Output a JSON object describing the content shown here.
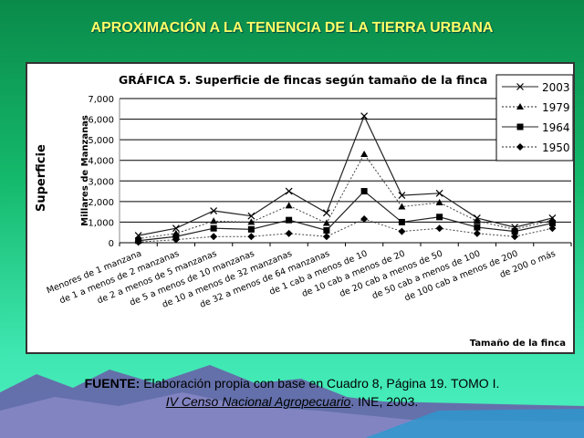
{
  "slide_title": "APROXIMACIÓN A LA TENENCIA DE LA TIERRA URBANA",
  "outer_ylabel": "Superficie",
  "source": {
    "label": "FUENTE:",
    "line1": "Elaboración propia con base en Cuadro 8, Página 19. TOMO I.",
    "line2_italic": "IV Censo Nacional Agropecuario",
    "line2_rest": ".  INE, 2003."
  },
  "chart_data": {
    "type": "line",
    "title": "GRÁFICA 5. Superficie de fincas según tamaño de la finca",
    "xlabel": "Tamaño de la finca",
    "ylabel": "Millares de Manzanas",
    "ylim": [
      0,
      7000
    ],
    "yticks": [
      "0",
      "1,000",
      "2,000",
      "3,000",
      "4,000",
      "5,000",
      "6,000",
      "7,000"
    ],
    "grid": true,
    "legend_position": "top-right",
    "categories": [
      "Menores de 1 manzana",
      "de 1 a menos de 2 manzanas",
      "de 2  a menos de 5 manzanas",
      "de 5 a menos de 10 manzanas",
      "de 10 a menos de 32 manzanas",
      "de 32 a menos de 64 manzanas",
      "de 1 cab a menos de 10",
      "de 10 cab a menos de 20",
      "de 20 cab a menos de 50",
      "de 50 cab a menos de 100",
      "de 100 cab a menos de 200",
      "de 200 o más"
    ],
    "series": [
      {
        "name": "2003",
        "marker": "x",
        "dash": "none",
        "values": [
          350,
          700,
          1550,
          1300,
          2500,
          1450,
          6150,
          2300,
          2400,
          1200,
          750,
          1200
        ]
      },
      {
        "name": "1979",
        "marker": "triangle",
        "dash": "2,2",
        "values": [
          200,
          450,
          1050,
          1000,
          1800,
          950,
          4300,
          1750,
          1950,
          1050,
          650,
          1100
        ]
      },
      {
        "name": "1964",
        "marker": "square",
        "dash": "none",
        "values": [
          100,
          300,
          700,
          650,
          1100,
          600,
          2500,
          1000,
          1250,
          750,
          550,
          950
        ]
      },
      {
        "name": "1950",
        "marker": "diamond",
        "dash": "2,2",
        "values": [
          30,
          150,
          300,
          300,
          450,
          300,
          1150,
          550,
          700,
          450,
          300,
          700
        ]
      }
    ]
  }
}
